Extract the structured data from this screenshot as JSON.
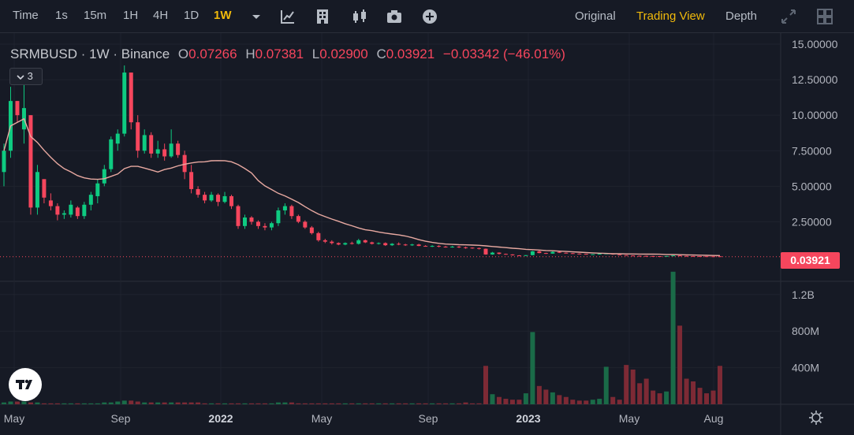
{
  "toolbar": {
    "intervals": [
      "Time",
      "1s",
      "15m",
      "1H",
      "4H",
      "1D",
      "1W"
    ],
    "active_interval": "1W",
    "views": [
      "Original",
      "Trading View",
      "Depth"
    ],
    "active_view": "Trading View",
    "icons": [
      "chevron-down-icon",
      "chart-indicators-icon",
      "chart-template-icon",
      "candle-style-icon",
      "screenshot-icon",
      "add-icon",
      "fullscreen-icon",
      "layout-grid-icon",
      "settings-icon"
    ]
  },
  "legend": {
    "symbol": "SRMBUSD",
    "interval": "1W",
    "exchange": "Binance",
    "open_label": "O",
    "open": "0.07266",
    "high_label": "H",
    "high": "0.07381",
    "low_label": "L",
    "low": "0.02900",
    "close_label": "C",
    "close": "0.03921",
    "change": "−0.03342 (−46.01%)"
  },
  "collapse_count": "3",
  "colors": {
    "up": "#0ecb81",
    "down": "#f6465d",
    "ma": "#e8a9a1",
    "vol_up": "#1a6b48",
    "vol_down": "#7d2a35",
    "accent": "#f0b90b"
  },
  "chart_data": {
    "type": "candlestick",
    "price_axis_labels": [
      "15.00000",
      "12.50000",
      "10.00000",
      "7.50000",
      "5.00000",
      "2.50000"
    ],
    "price_ticks": [
      15,
      12.5,
      10,
      7.5,
      5,
      2.5
    ],
    "last_price": "0.03921",
    "volume_axis_labels": [
      "1.2B",
      "800M",
      "400M"
    ],
    "volume_ticks": [
      1200000000,
      800000000,
      400000000
    ],
    "time_labels": [
      "May",
      "Sep",
      "2022",
      "May",
      "Sep",
      "2023",
      "May",
      "Aug"
    ],
    "time_label_bold": [
      false,
      false,
      true,
      false,
      false,
      true,
      false,
      false
    ],
    "ylim": [
      0,
      15.5
    ],
    "vol_ylim": [
      0,
      1500000000
    ],
    "ma_length": 20,
    "candles": [
      [
        6.0,
        8.0,
        5.0,
        7.5,
        0.02
      ],
      [
        7.5,
        12.0,
        7.0,
        11.0,
        0.03
      ],
      [
        11.0,
        11.0,
        9.5,
        10.0,
        0.03
      ],
      [
        9.0,
        12.5,
        8.0,
        10.5,
        0.03
      ],
      [
        10.0,
        10.0,
        3.0,
        3.5,
        0.02
      ],
      [
        3.5,
        6.5,
        3.0,
        6.0,
        0.02
      ],
      [
        5.5,
        5.5,
        3.8,
        4.2,
        0.01
      ],
      [
        4.0,
        4.5,
        3.3,
        3.6,
        0.01
      ],
      [
        3.6,
        3.8,
        2.6,
        3.0,
        0.01
      ],
      [
        3.0,
        3.3,
        2.7,
        3.1,
        0.01
      ],
      [
        3.0,
        4.0,
        2.8,
        3.7,
        0.01
      ],
      [
        3.5,
        3.6,
        2.7,
        2.9,
        0.01
      ],
      [
        2.9,
        3.9,
        2.7,
        3.7,
        0.01
      ],
      [
        3.7,
        4.6,
        3.3,
        4.4,
        0.01
      ],
      [
        4.3,
        5.5,
        3.8,
        5.2,
        0.01
      ],
      [
        5.2,
        6.5,
        5.0,
        6.2,
        0.02
      ],
      [
        6.2,
        8.5,
        6.0,
        8.3,
        0.02
      ],
      [
        8.0,
        9.0,
        7.5,
        8.7,
        0.03
      ],
      [
        8.7,
        13.5,
        8.5,
        13.0,
        0.04
      ],
      [
        13.0,
        13.0,
        9.0,
        9.5,
        0.04
      ],
      [
        9.5,
        10.0,
        7.0,
        7.5,
        0.03
      ],
      [
        7.5,
        9.0,
        7.3,
        8.6,
        0.02
      ],
      [
        8.6,
        8.8,
        7.0,
        7.3,
        0.02
      ],
      [
        7.3,
        8.2,
        7.0,
        7.6,
        0.02
      ],
      [
        7.6,
        8.0,
        6.8,
        7.1,
        0.02
      ],
      [
        7.1,
        9.0,
        7.0,
        8.0,
        0.02
      ],
      [
        8.0,
        8.2,
        7.0,
        7.2,
        0.02
      ],
      [
        7.2,
        7.5,
        5.5,
        6.0,
        0.02
      ],
      [
        6.0,
        6.5,
        4.5,
        4.8,
        0.02
      ],
      [
        4.8,
        5.0,
        4.2,
        4.4,
        0.02
      ],
      [
        4.4,
        4.6,
        3.8,
        4.0,
        0.01
      ],
      [
        4.0,
        4.6,
        3.9,
        4.4,
        0.01
      ],
      [
        4.4,
        4.5,
        3.6,
        3.9,
        0.01
      ],
      [
        3.9,
        4.6,
        3.8,
        4.3,
        0.01
      ],
      [
        4.3,
        4.4,
        3.4,
        3.6,
        0.01
      ],
      [
        3.6,
        3.7,
        2.0,
        2.2,
        0.01
      ],
      [
        2.2,
        3.0,
        2.0,
        2.8,
        0.01
      ],
      [
        2.8,
        2.9,
        2.3,
        2.5,
        0.01
      ],
      [
        2.5,
        2.6,
        2.0,
        2.2,
        0.01
      ],
      [
        2.2,
        2.4,
        1.9,
        2.1,
        0.01
      ],
      [
        2.1,
        2.5,
        1.9,
        2.4,
        0.01
      ],
      [
        2.4,
        3.5,
        2.2,
        3.3,
        0.02
      ],
      [
        3.3,
        3.8,
        3.0,
        3.6,
        0.02
      ],
      [
        3.6,
        3.7,
        2.7,
        2.9,
        0.02
      ],
      [
        2.9,
        3.0,
        2.4,
        2.5,
        0.01
      ],
      [
        2.5,
        2.6,
        2.0,
        2.1,
        0.01
      ],
      [
        2.1,
        2.2,
        1.6,
        1.7,
        0.01
      ],
      [
        1.7,
        1.8,
        1.1,
        1.2,
        0.01
      ],
      [
        1.2,
        1.3,
        1.0,
        1.1,
        0.01
      ],
      [
        1.1,
        1.2,
        0.9,
        1.0,
        0.01
      ],
      [
        1.0,
        1.05,
        0.85,
        0.9,
        0.01
      ],
      [
        0.9,
        1.05,
        0.85,
        1.0,
        0.01
      ],
      [
        1.0,
        1.1,
        0.9,
        0.95,
        0.01
      ],
      [
        0.95,
        1.3,
        0.9,
        1.2,
        0.01
      ],
      [
        1.2,
        1.25,
        1.0,
        1.05,
        0.01
      ],
      [
        1.05,
        1.1,
        0.9,
        0.95,
        0.01
      ],
      [
        0.95,
        1.05,
        0.9,
        1.0,
        0.01
      ],
      [
        1.0,
        1.05,
        0.8,
        0.85,
        0.01
      ],
      [
        0.85,
        1.0,
        0.8,
        0.95,
        0.01
      ],
      [
        0.95,
        1.05,
        0.85,
        0.9,
        0.01
      ],
      [
        0.9,
        0.95,
        0.8,
        0.85,
        0.01
      ],
      [
        0.85,
        0.95,
        0.8,
        0.9,
        0.01
      ],
      [
        0.9,
        0.95,
        0.78,
        0.8,
        0.01
      ],
      [
        0.8,
        0.85,
        0.75,
        0.78,
        0.01
      ],
      [
        0.78,
        0.85,
        0.72,
        0.8,
        0.01
      ],
      [
        0.8,
        0.85,
        0.7,
        0.75,
        0.01
      ],
      [
        0.75,
        0.8,
        0.68,
        0.72,
        0.01
      ],
      [
        0.72,
        0.8,
        0.68,
        0.75,
        0.01
      ],
      [
        0.75,
        0.8,
        0.65,
        0.7,
        0.01
      ],
      [
        0.7,
        0.75,
        0.6,
        0.68,
        0.02
      ],
      [
        0.68,
        0.7,
        0.6,
        0.65,
        0.01
      ],
      [
        0.65,
        0.68,
        0.55,
        0.6,
        0.01
      ],
      [
        0.6,
        0.62,
        0.18,
        0.2,
        0.42
      ],
      [
        0.2,
        0.38,
        0.18,
        0.33,
        0.11
      ],
      [
        0.33,
        0.35,
        0.2,
        0.24,
        0.08
      ],
      [
        0.24,
        0.26,
        0.18,
        0.2,
        0.06
      ],
      [
        0.2,
        0.22,
        0.12,
        0.14,
        0.05
      ],
      [
        0.14,
        0.15,
        0.1,
        0.11,
        0.05
      ],
      [
        0.11,
        0.16,
        0.1,
        0.15,
        0.12
      ],
      [
        0.15,
        0.45,
        0.14,
        0.42,
        0.79
      ],
      [
        0.42,
        0.5,
        0.28,
        0.3,
        0.2
      ],
      [
        0.3,
        0.32,
        0.24,
        0.26,
        0.16
      ],
      [
        0.26,
        0.42,
        0.25,
        0.38,
        0.13
      ],
      [
        0.38,
        0.42,
        0.3,
        0.32,
        0.1
      ],
      [
        0.32,
        0.34,
        0.27,
        0.29,
        0.08
      ],
      [
        0.29,
        0.31,
        0.24,
        0.26,
        0.05
      ],
      [
        0.26,
        0.28,
        0.22,
        0.24,
        0.04
      ],
      [
        0.24,
        0.25,
        0.2,
        0.21,
        0.04
      ],
      [
        0.21,
        0.23,
        0.18,
        0.22,
        0.05
      ],
      [
        0.22,
        0.26,
        0.2,
        0.25,
        0.06
      ],
      [
        0.25,
        0.28,
        0.22,
        0.27,
        0.41
      ],
      [
        0.27,
        0.28,
        0.18,
        0.2,
        0.08
      ],
      [
        0.2,
        0.21,
        0.15,
        0.16,
        0.05
      ],
      [
        0.16,
        0.17,
        0.12,
        0.13,
        0.43
      ],
      [
        0.13,
        0.14,
        0.1,
        0.11,
        0.38
      ],
      [
        0.11,
        0.12,
        0.09,
        0.1,
        0.23
      ],
      [
        0.1,
        0.11,
        0.08,
        0.09,
        0.28
      ],
      [
        0.09,
        0.1,
        0.07,
        0.08,
        0.15
      ],
      [
        0.08,
        0.09,
        0.06,
        0.07,
        0.12
      ],
      [
        0.07,
        0.1,
        0.06,
        0.09,
        0.14
      ],
      [
        0.09,
        0.14,
        0.08,
        0.13,
        1.45
      ],
      [
        0.13,
        0.15,
        0.09,
        0.1,
        0.86
      ],
      [
        0.1,
        0.11,
        0.08,
        0.09,
        0.28
      ],
      [
        0.09,
        0.1,
        0.075,
        0.08,
        0.25
      ],
      [
        0.08,
        0.085,
        0.07,
        0.075,
        0.18
      ],
      [
        0.075,
        0.08,
        0.065,
        0.07,
        0.12
      ],
      [
        0.07,
        0.075,
        0.06,
        0.065,
        0.15
      ],
      [
        0.07266,
        0.07381,
        0.029,
        0.03921,
        0.42
      ]
    ]
  }
}
